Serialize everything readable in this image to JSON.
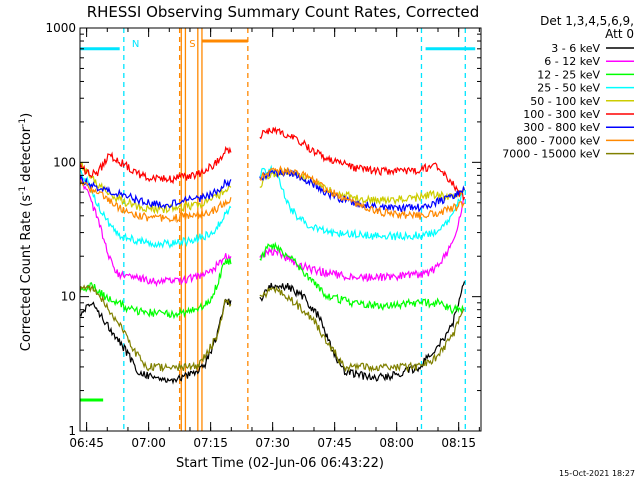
{
  "chart_data": {
    "type": "line",
    "title": "RHESSI Observing Summary Count Rates, Corrected",
    "xlabel": "Start Time (02-Jun-06 06:43:22)",
    "ylabel_parts": [
      "Corrected Count Rate (s",
      "-1",
      " detector",
      "-1",
      ")"
    ],
    "yscale": "log",
    "ylim": [
      1,
      1000
    ],
    "xlim_minutes_after_0643": [
      0,
      97
    ],
    "x_ticks": [
      {
        "label": "06:45",
        "min": 1.6
      },
      {
        "label": "07:00",
        "min": 16.6
      },
      {
        "label": "07:15",
        "min": 31.6
      },
      {
        "label": "07:30",
        "min": 46.6
      },
      {
        "label": "07:45",
        "min": 61.6
      },
      {
        "label": "08:00",
        "min": 76.6
      },
      {
        "label": "08:15",
        "min": 91.6
      }
    ],
    "y_ticks": [
      {
        "label": "1",
        "value": 1
      },
      {
        "label": "10",
        "value": 10
      },
      {
        "label": "100",
        "value": 100
      },
      {
        "label": "1000",
        "value": 1000
      }
    ],
    "legend_header": [
      "Det 1,3,4,5,6,9,",
      "Att 0"
    ],
    "legend_position": "right",
    "series": [
      {
        "name": "3 - 6 keV",
        "color": "#000000",
        "points": [
          [
            0,
            7.5
          ],
          [
            3,
            9
          ],
          [
            7,
            6
          ],
          [
            11,
            4
          ],
          [
            14,
            2.8
          ],
          [
            18,
            2.5
          ],
          [
            22,
            2.4
          ],
          [
            26,
            2.6
          ],
          [
            30,
            3
          ],
          [
            33,
            5
          ],
          [
            35,
            9
          ],
          [
            44,
            10
          ],
          [
            46,
            12
          ],
          [
            50,
            12
          ],
          [
            54,
            10
          ],
          [
            58,
            7
          ],
          [
            61,
            4
          ],
          [
            64,
            2.8
          ],
          [
            70,
            2.5
          ],
          [
            76,
            2.6
          ],
          [
            82,
            3
          ],
          [
            86,
            4
          ],
          [
            90,
            6
          ],
          [
            92,
            10
          ],
          [
            93,
            13
          ]
        ]
      },
      {
        "name": "6 - 12 keV",
        "color": "#ff00ff",
        "points": [
          [
            0,
            75
          ],
          [
            2,
            60
          ],
          [
            4,
            40
          ],
          [
            7,
            20
          ],
          [
            9,
            15
          ],
          [
            12,
            14
          ],
          [
            18,
            13
          ],
          [
            24,
            13
          ],
          [
            28,
            14
          ],
          [
            31,
            15
          ],
          [
            33,
            17
          ],
          [
            35,
            20
          ],
          [
            44,
            20
          ],
          [
            46,
            22
          ],
          [
            48,
            21
          ],
          [
            52,
            18
          ],
          [
            56,
            16
          ],
          [
            60,
            15
          ],
          [
            66,
            14
          ],
          [
            74,
            14
          ],
          [
            80,
            14.5
          ],
          [
            84,
            15
          ],
          [
            87,
            17
          ],
          [
            90,
            25
          ],
          [
            92,
            40
          ],
          [
            93,
            55
          ]
        ]
      },
      {
        "name": "12 - 25 keV",
        "color": "#00ff00",
        "points": [
          [
            0,
            11
          ],
          [
            3,
            12
          ],
          [
            6,
            10
          ],
          [
            9,
            9
          ],
          [
            12,
            8
          ],
          [
            18,
            7.5
          ],
          [
            24,
            7.5
          ],
          [
            28,
            8
          ],
          [
            31,
            9
          ],
          [
            33,
            12
          ],
          [
            35,
            18
          ],
          [
            44,
            20
          ],
          [
            46,
            24
          ],
          [
            48,
            23
          ],
          [
            52,
            18
          ],
          [
            56,
            13
          ],
          [
            60,
            10
          ],
          [
            66,
            9
          ],
          [
            74,
            8.5
          ],
          [
            80,
            9
          ],
          [
            84,
            9
          ],
          [
            87,
            9
          ],
          [
            90,
            8
          ],
          [
            92,
            8
          ],
          [
            93,
            8
          ]
        ]
      },
      {
        "name": "25 - 50 keV",
        "color": "#00ffff",
        "points": [
          [
            0,
            85
          ],
          [
            2,
            70
          ],
          [
            4,
            50
          ],
          [
            7,
            35
          ],
          [
            10,
            28
          ],
          [
            14,
            26
          ],
          [
            18,
            25
          ],
          [
            22,
            25
          ],
          [
            26,
            26
          ],
          [
            30,
            28
          ],
          [
            33,
            32
          ],
          [
            35,
            40
          ],
          [
            44,
            85
          ],
          [
            46,
            88
          ],
          [
            48,
            80
          ],
          [
            50,
            50
          ],
          [
            53,
            38
          ],
          [
            56,
            33
          ],
          [
            60,
            30
          ],
          [
            66,
            29
          ],
          [
            74,
            28
          ],
          [
            80,
            28.5
          ],
          [
            84,
            29
          ],
          [
            87,
            30
          ],
          [
            90,
            40
          ],
          [
            92,
            55
          ],
          [
            93,
            65
          ]
        ]
      },
      {
        "name": "50 - 100 keV",
        "color": "#cccc00",
        "points": [
          [
            0,
            100
          ],
          [
            2,
            80
          ],
          [
            4,
            70
          ],
          [
            7,
            58
          ],
          [
            10,
            52
          ],
          [
            14,
            47
          ],
          [
            18,
            45
          ],
          [
            22,
            45
          ],
          [
            26,
            47
          ],
          [
            30,
            50
          ],
          [
            33,
            55
          ],
          [
            35,
            62
          ],
          [
            44,
            70
          ],
          [
            46,
            80
          ],
          [
            48,
            85
          ],
          [
            52,
            82
          ],
          [
            56,
            72
          ],
          [
            60,
            62
          ],
          [
            66,
            55
          ],
          [
            72,
            52
          ],
          [
            78,
            53
          ],
          [
            82,
            55
          ],
          [
            86,
            58
          ],
          [
            90,
            55
          ],
          [
            92,
            60
          ],
          [
            93,
            65
          ]
        ]
      },
      {
        "name": "100 - 300 keV",
        "color": "#ff0000",
        "points": [
          [
            0,
            90
          ],
          [
            2,
            85
          ],
          [
            4,
            80
          ],
          [
            7,
            115
          ],
          [
            10,
            100
          ],
          [
            14,
            82
          ],
          [
            18,
            76
          ],
          [
            22,
            75
          ],
          [
            26,
            78
          ],
          [
            30,
            85
          ],
          [
            33,
            100
          ],
          [
            35,
            120
          ],
          [
            44,
            160
          ],
          [
            46,
            175
          ],
          [
            48,
            170
          ],
          [
            52,
            150
          ],
          [
            56,
            125
          ],
          [
            60,
            105
          ],
          [
            66,
            92
          ],
          [
            72,
            86
          ],
          [
            78,
            85
          ],
          [
            82,
            88
          ],
          [
            86,
            95
          ],
          [
            90,
            70
          ],
          [
            92,
            58
          ],
          [
            93,
            55
          ]
        ]
      },
      {
        "name": "300 - 800 keV",
        "color": "#0000ff",
        "points": [
          [
            0,
            75
          ],
          [
            2,
            70
          ],
          [
            4,
            65
          ],
          [
            7,
            62
          ],
          [
            10,
            58
          ],
          [
            14,
            52
          ],
          [
            18,
            49
          ],
          [
            22,
            49
          ],
          [
            26,
            52
          ],
          [
            30,
            55
          ],
          [
            33,
            60
          ],
          [
            35,
            70
          ],
          [
            44,
            78
          ],
          [
            46,
            82
          ],
          [
            48,
            85
          ],
          [
            52,
            82
          ],
          [
            56,
            70
          ],
          [
            60,
            58
          ],
          [
            66,
            50
          ],
          [
            72,
            46
          ],
          [
            78,
            45
          ],
          [
            82,
            46
          ],
          [
            86,
            50
          ],
          [
            90,
            55
          ],
          [
            92,
            60
          ],
          [
            93,
            62
          ]
        ]
      },
      {
        "name": "800 - 7000 keV",
        "color": "#ff8800",
        "points": [
          [
            0,
            70
          ],
          [
            2,
            65
          ],
          [
            4,
            60
          ],
          [
            7,
            52
          ],
          [
            10,
            45
          ],
          [
            14,
            40
          ],
          [
            18,
            38
          ],
          [
            22,
            38
          ],
          [
            26,
            40
          ],
          [
            30,
            42
          ],
          [
            33,
            45
          ],
          [
            35,
            50
          ],
          [
            44,
            78
          ],
          [
            46,
            85
          ],
          [
            48,
            88
          ],
          [
            52,
            85
          ],
          [
            56,
            75
          ],
          [
            60,
            62
          ],
          [
            66,
            50
          ],
          [
            72,
            43
          ],
          [
            78,
            40
          ],
          [
            82,
            40
          ],
          [
            86,
            42
          ],
          [
            90,
            45
          ],
          [
            92,
            48
          ],
          [
            93,
            50
          ]
        ]
      },
      {
        "name": "7000 - 15000 keV",
        "color": "#808000",
        "points": [
          [
            0,
            11
          ],
          [
            2,
            12
          ],
          [
            4,
            11
          ],
          [
            7,
            8
          ],
          [
            10,
            6
          ],
          [
            13,
            4
          ],
          [
            16,
            3
          ],
          [
            20,
            3
          ],
          [
            24,
            3
          ],
          [
            28,
            3
          ],
          [
            30,
            3.5
          ],
          [
            33,
            5
          ],
          [
            35,
            9
          ],
          [
            44,
            10
          ],
          [
            46,
            11
          ],
          [
            48,
            11
          ],
          [
            52,
            9
          ],
          [
            56,
            7
          ],
          [
            60,
            4.5
          ],
          [
            64,
            3
          ],
          [
            70,
            3
          ],
          [
            76,
            3
          ],
          [
            82,
            3
          ],
          [
            86,
            3.5
          ],
          [
            90,
            5
          ],
          [
            92,
            7
          ],
          [
            93,
            8
          ]
        ]
      }
    ],
    "markers": [
      {
        "label": "N",
        "color": "#00e5ff",
        "vlines_min": [
          10.6,
          82.6,
          93.2
        ],
        "bars_min": [
          [
            0,
            9.6
          ],
          [
            83.6,
            95.6
          ]
        ],
        "bar_value": 700
      },
      {
        "label": "S",
        "color": "#ff8800",
        "vlines_min": [
          24.5,
          25.5,
          28.5,
          29.5
        ],
        "dashed_vlines_min": [
          24.1,
          40.6
        ],
        "bars_min": [
          [
            29.6,
            40.6
          ]
        ],
        "bar_value": 800
      },
      {
        "label": "",
        "color": "#00ff00",
        "bars_min": [
          [
            0,
            5.6
          ]
        ],
        "bar_value": 1.7
      }
    ],
    "footer_date": "15-Oct-2021 18:27"
  }
}
